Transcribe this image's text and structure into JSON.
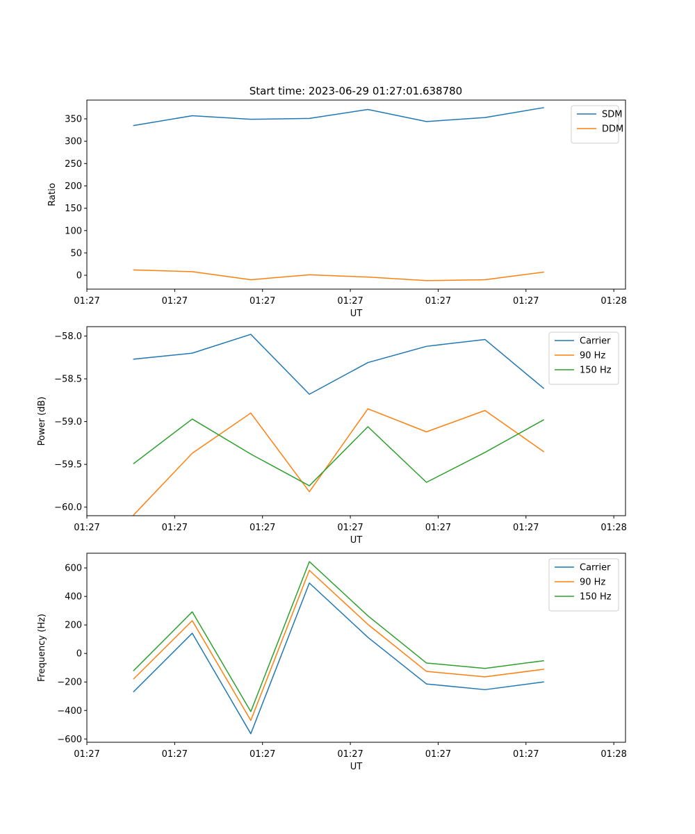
{
  "figure_title": "Start time: 2023-06-29 01:27:01.638780",
  "chart_data": [
    {
      "type": "line",
      "title": "Start time: 2023-06-29 01:27:01.638780",
      "xlabel": "UT",
      "ylabel": "Ratio",
      "x": [
        1,
        2,
        3,
        4,
        5,
        6,
        7,
        8
      ],
      "xlim": [
        0.2,
        9.4
      ],
      "xticks": [
        0.2,
        1.7,
        3.2,
        4.7,
        6.2,
        7.7,
        9.2
      ],
      "xtick_labels": [
        "01:27",
        "01:27",
        "01:27",
        "01:27",
        "01:27",
        "01:27",
        "01:28"
      ],
      "ylim": [
        -31,
        392
      ],
      "yticks": [
        0,
        50,
        100,
        150,
        200,
        250,
        300,
        350
      ],
      "ytick_labels": [
        "0",
        "50",
        "100",
        "150",
        "200",
        "250",
        "300",
        "350"
      ],
      "legend_position": "upper right",
      "series": [
        {
          "name": "SDM",
          "color": "#1f77b4",
          "values": [
            335,
            357,
            349,
            351,
            371,
            344,
            353,
            375
          ]
        },
        {
          "name": "DDM",
          "color": "#ff7f0e",
          "values": [
            12,
            8,
            -10,
            1,
            -4,
            -12,
            -10,
            7
          ]
        }
      ]
    },
    {
      "type": "line",
      "title": "",
      "xlabel": "UT",
      "ylabel": "Power (dB)",
      "x": [
        1,
        2,
        3,
        4,
        5,
        6,
        7,
        8
      ],
      "xlim": [
        0.2,
        9.4
      ],
      "xticks": [
        0.2,
        1.7,
        3.2,
        4.7,
        6.2,
        7.7,
        9.2
      ],
      "xtick_labels": [
        "01:27",
        "01:27",
        "01:27",
        "01:27",
        "01:27",
        "01:27",
        "01:28"
      ],
      "ylim": [
        -60.1,
        -57.89
      ],
      "yticks": [
        -60.0,
        -59.5,
        -59.0,
        -58.5,
        -58.0
      ],
      "ytick_labels": [
        "−60.0",
        "−59.5",
        "−59.0",
        "−58.5",
        "−58.0"
      ],
      "legend_position": "upper right",
      "series": [
        {
          "name": "Carrier",
          "color": "#1f77b4",
          "values": [
            -58.27,
            -58.2,
            -57.98,
            -58.68,
            -58.31,
            -58.12,
            -58.04,
            -58.61
          ]
        },
        {
          "name": "90 Hz",
          "color": "#ff7f0e",
          "values": [
            -60.09,
            -59.37,
            -58.9,
            -59.82,
            -58.85,
            -59.12,
            -58.87,
            -59.35
          ]
        },
        {
          "name": "150 Hz",
          "color": "#2ca02c",
          "values": [
            -59.49,
            -58.97,
            -59.38,
            -59.75,
            -59.06,
            -59.71,
            -59.36,
            -58.98
          ]
        }
      ]
    },
    {
      "type": "line",
      "title": "",
      "xlabel": "UT",
      "ylabel": "Frequency (Hz)",
      "x": [
        1,
        2,
        3,
        4,
        5,
        6,
        7,
        8
      ],
      "xlim": [
        0.2,
        9.4
      ],
      "xticks": [
        0.2,
        1.7,
        3.2,
        4.7,
        6.2,
        7.7,
        9.2
      ],
      "xtick_labels": [
        "01:27",
        "01:27",
        "01:27",
        "01:27",
        "01:27",
        "01:27",
        "01:28"
      ],
      "ylim": [
        -623,
        703
      ],
      "yticks": [
        -600,
        -400,
        -200,
        0,
        200,
        400,
        600
      ],
      "ytick_labels": [
        "−600",
        "−400",
        "−200",
        "0",
        "200",
        "400",
        "600"
      ],
      "legend_position": "upper right",
      "series": [
        {
          "name": "Carrier",
          "color": "#1f77b4",
          "values": [
            -268,
            142,
            -563,
            494,
            113,
            -214,
            -254,
            -200
          ]
        },
        {
          "name": "90 Hz",
          "color": "#ff7f0e",
          "values": [
            -178,
            230,
            -470,
            583,
            204,
            -126,
            -164,
            -111
          ]
        },
        {
          "name": "150 Hz",
          "color": "#2ca02c",
          "values": [
            -120,
            292,
            -408,
            644,
            264,
            -67,
            -105,
            -51
          ]
        }
      ]
    }
  ]
}
